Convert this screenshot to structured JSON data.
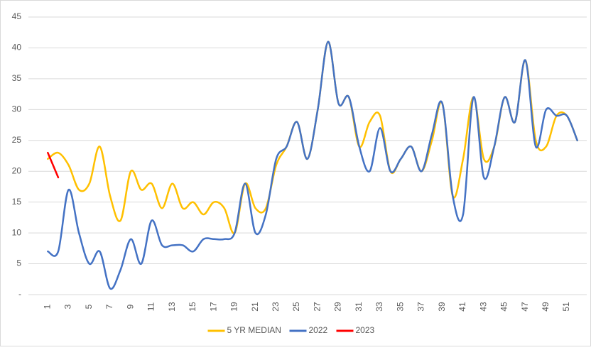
{
  "chart_data": {
    "type": "line",
    "categories": [
      1,
      null,
      3,
      null,
      5,
      null,
      7,
      null,
      9,
      null,
      11,
      null,
      13,
      null,
      15,
      null,
      17,
      null,
      19,
      null,
      21,
      null,
      23,
      null,
      25,
      null,
      27,
      null,
      29,
      null,
      31,
      null,
      33,
      null,
      35,
      null,
      37,
      null,
      39,
      null,
      41,
      null,
      43,
      null,
      45,
      null,
      47,
      null,
      49,
      null,
      51,
      null
    ],
    "series": [
      {
        "name": "5 YR MEDIAN",
        "color": "#ffc000",
        "values": [
          22,
          23,
          21,
          17,
          18,
          24,
          16,
          12,
          20,
          17,
          18,
          14,
          18,
          14,
          15,
          13,
          15,
          14,
          10,
          18,
          14,
          14,
          21,
          24,
          28,
          22,
          30,
          41,
          31,
          32,
          24,
          28,
          29,
          20,
          22,
          24,
          20,
          25,
          31,
          16,
          22,
          32,
          22,
          24,
          32,
          28,
          38,
          25,
          24,
          29,
          29,
          25
        ]
      },
      {
        "name": "2022",
        "color": "#4472c4",
        "values": [
          7,
          7,
          17,
          10,
          5,
          7,
          1,
          4,
          9,
          5,
          12,
          8,
          8,
          8,
          7,
          9,
          9,
          9,
          10,
          18,
          10,
          13,
          22,
          24,
          28,
          22,
          30,
          41,
          31,
          32,
          24,
          20,
          27,
          20,
          22,
          24,
          20,
          26,
          31,
          16,
          13,
          32,
          19,
          24,
          32,
          28,
          38,
          24,
          30,
          29,
          29,
          25
        ]
      },
      {
        "name": "2023",
        "color": "#ff0000",
        "values": [
          23,
          19,
          null,
          null,
          null,
          null,
          null,
          null,
          null,
          null,
          null,
          null,
          null,
          null,
          null,
          null,
          null,
          null,
          null,
          null,
          null,
          null,
          null,
          null,
          null,
          null,
          null,
          null,
          null,
          null,
          null,
          null,
          null,
          null,
          null,
          null,
          null,
          null,
          null,
          null,
          null,
          null,
          null,
          null,
          null,
          null,
          null,
          null,
          null,
          null,
          null,
          null
        ]
      }
    ],
    "ylim": [
      0,
      45
    ],
    "yticks": [
      {
        "value": 0,
        "label": "-"
      },
      5,
      10,
      15,
      20,
      25,
      30,
      35,
      40,
      45
    ],
    "grid": true,
    "smooth": true,
    "legend": "bottom"
  }
}
